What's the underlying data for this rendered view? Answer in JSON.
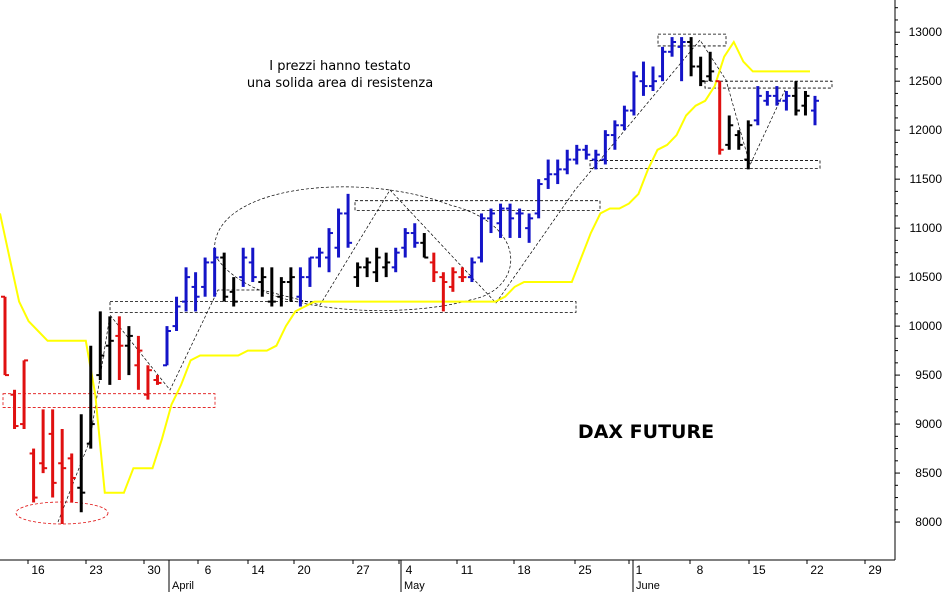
{
  "chart_data": {
    "type": "ohlc",
    "title": "DAX FUTURE",
    "annotation": [
      "I prezzi hanno testato",
      "una solida area di resistenza"
    ],
    "y_ticks": [
      8000,
      8500,
      9000,
      9500,
      10000,
      10500,
      11000,
      11500,
      12000,
      12500,
      13000
    ],
    "ylim": [
      7600,
      13200
    ],
    "x_day_labels": [
      "16",
      "23",
      "30",
      "6",
      "14",
      "20",
      "27",
      "4",
      "11",
      "18",
      "25",
      "1",
      "8",
      "15",
      "22",
      "29"
    ],
    "x_month_labels": [
      "April",
      "May",
      "June"
    ],
    "bar_colors": {
      "up": "#1414c8",
      "down": "#e01010",
      "neutral": "#000000"
    },
    "overlay_line": {
      "color": "#ffff00"
    },
    "resistance_zones": [
      {
        "low": 9170,
        "high": 9310
      },
      {
        "low": 10140,
        "high": 10250
      },
      {
        "low": 11180,
        "high": 11280
      },
      {
        "low": 11610,
        "high": 11690
      },
      {
        "low": 12430,
        "high": 12500
      },
      {
        "low": 12860,
        "high": 12980
      }
    ],
    "bars": [
      {
        "o": 10300,
        "h": 10300,
        "l": 9500,
        "c": 9500,
        "k": "down"
      },
      {
        "o": 9300,
        "h": 9350,
        "l": 8950,
        "c": 8980,
        "k": "down"
      },
      {
        "o": 9000,
        "h": 9650,
        "l": 8950,
        "c": 9650,
        "k": "down"
      },
      {
        "o": 8700,
        "h": 8750,
        "l": 8200,
        "c": 8250,
        "k": "down"
      },
      {
        "o": 8600,
        "h": 9150,
        "l": 8500,
        "c": 8550,
        "k": "down"
      },
      {
        "o": 8900,
        "h": 9150,
        "l": 8250,
        "c": 8400,
        "k": "down"
      },
      {
        "o": 8600,
        "h": 8950,
        "l": 7980,
        "c": 8550,
        "k": "down"
      },
      {
        "o": 8650,
        "h": 8700,
        "l": 8200,
        "c": 8450,
        "k": "down"
      },
      {
        "o": 8350,
        "h": 9100,
        "l": 8100,
        "c": 8300,
        "k": "neutral"
      },
      {
        "o": 8800,
        "h": 9800,
        "l": 8750,
        "c": 9000,
        "k": "neutral"
      },
      {
        "o": 9500,
        "h": 10150,
        "l": 9450,
        "c": 9700,
        "k": "neutral"
      },
      {
        "o": 9800,
        "h": 10100,
        "l": 9400,
        "c": 9850,
        "k": "neutral"
      },
      {
        "o": 9900,
        "h": 10100,
        "l": 9450,
        "c": 9800,
        "k": "down"
      },
      {
        "o": 9800,
        "h": 10000,
        "l": 9500,
        "c": 9900,
        "k": "neutral"
      },
      {
        "o": 9600,
        "h": 9900,
        "l": 9350,
        "c": 9750,
        "k": "down"
      },
      {
        "o": 9300,
        "h": 9600,
        "l": 9250,
        "c": 9550,
        "k": "down"
      },
      {
        "o": 9450,
        "h": 9500,
        "l": 9400,
        "c": 9420,
        "k": "down"
      },
      {
        "o": 9600,
        "h": 10000,
        "l": 9600,
        "c": 9950,
        "k": "up"
      },
      {
        "o": 10000,
        "h": 10300,
        "l": 9950,
        "c": 10200,
        "k": "up"
      },
      {
        "o": 10250,
        "h": 10600,
        "l": 10150,
        "c": 10500,
        "k": "up"
      },
      {
        "o": 10400,
        "h": 10550,
        "l": 10150,
        "c": 10300,
        "k": "up"
      },
      {
        "o": 10400,
        "h": 10700,
        "l": 10300,
        "c": 10650,
        "k": "up"
      },
      {
        "o": 10650,
        "h": 10800,
        "l": 10300,
        "c": 10700,
        "k": "up"
      },
      {
        "o": 10700,
        "h": 10750,
        "l": 10250,
        "c": 10300,
        "k": "neutral"
      },
      {
        "o": 10350,
        "h": 10500,
        "l": 10200,
        "c": 10250,
        "k": "neutral"
      },
      {
        "o": 10500,
        "h": 10800,
        "l": 10400,
        "c": 10700,
        "k": "up"
      },
      {
        "o": 10650,
        "h": 10800,
        "l": 10450,
        "c": 10500,
        "k": "up"
      },
      {
        "o": 10450,
        "h": 10600,
        "l": 10300,
        "c": 10500,
        "k": "neutral"
      },
      {
        "o": 10250,
        "h": 10600,
        "l": 10200,
        "c": 10250,
        "k": "neutral"
      },
      {
        "o": 10300,
        "h": 10500,
        "l": 10200,
        "c": 10450,
        "k": "neutral"
      },
      {
        "o": 10450,
        "h": 10600,
        "l": 10250,
        "c": 10500,
        "k": "neutral"
      },
      {
        "o": 10300,
        "h": 10600,
        "l": 10200,
        "c": 10500,
        "k": "up"
      },
      {
        "o": 10500,
        "h": 10700,
        "l": 10400,
        "c": 10700,
        "k": "up"
      },
      {
        "o": 10700,
        "h": 10800,
        "l": 10600,
        "c": 10750,
        "k": "up"
      },
      {
        "o": 10700,
        "h": 11000,
        "l": 10550,
        "c": 10950,
        "k": "up"
      },
      {
        "o": 10800,
        "h": 11200,
        "l": 10700,
        "c": 11150,
        "k": "up"
      },
      {
        "o": 11150,
        "h": 11350,
        "l": 10800,
        "c": 10850,
        "k": "up"
      },
      {
        "o": 10500,
        "h": 10650,
        "l": 10400,
        "c": 10600,
        "k": "neutral"
      },
      {
        "o": 10600,
        "h": 10700,
        "l": 10500,
        "c": 10650,
        "k": "neutral"
      },
      {
        "o": 10550,
        "h": 10800,
        "l": 10450,
        "c": 10700,
        "k": "neutral"
      },
      {
        "o": 10600,
        "h": 10750,
        "l": 10500,
        "c": 10650,
        "k": "neutral"
      },
      {
        "o": 10600,
        "h": 10800,
        "l": 10550,
        "c": 10750,
        "k": "up"
      },
      {
        "o": 10800,
        "h": 11000,
        "l": 10700,
        "c": 10950,
        "k": "up"
      },
      {
        "o": 10950,
        "h": 11050,
        "l": 10800,
        "c": 10850,
        "k": "up"
      },
      {
        "o": 10850,
        "h": 10950,
        "l": 10700,
        "c": 10700,
        "k": "neutral"
      },
      {
        "o": 10650,
        "h": 10750,
        "l": 10450,
        "c": 10550,
        "k": "down"
      },
      {
        "o": 10500,
        "h": 10550,
        "l": 10150,
        "c": 10450,
        "k": "down"
      },
      {
        "o": 10400,
        "h": 10600,
        "l": 10350,
        "c": 10550,
        "k": "down"
      },
      {
        "o": 10500,
        "h": 10600,
        "l": 10450,
        "c": 10500,
        "k": "down"
      },
      {
        "o": 10500,
        "h": 10700,
        "l": 10450,
        "c": 10650,
        "k": "up"
      },
      {
        "o": 10700,
        "h": 11150,
        "l": 10650,
        "c": 11100,
        "k": "up"
      },
      {
        "o": 11100,
        "h": 11200,
        "l": 10950,
        "c": 11150,
        "k": "up"
      },
      {
        "o": 11050,
        "h": 11250,
        "l": 10900,
        "c": 11200,
        "k": "up"
      },
      {
        "o": 11200,
        "h": 11250,
        "l": 10900,
        "c": 11100,
        "k": "up"
      },
      {
        "o": 11150,
        "h": 11200,
        "l": 10900,
        "c": 11150,
        "k": "up"
      },
      {
        "o": 11000,
        "h": 11150,
        "l": 10850,
        "c": 11100,
        "k": "up"
      },
      {
        "o": 11150,
        "h": 11500,
        "l": 11100,
        "c": 11450,
        "k": "up"
      },
      {
        "o": 11500,
        "h": 11700,
        "l": 11400,
        "c": 11550,
        "k": "up"
      },
      {
        "o": 11550,
        "h": 11700,
        "l": 11450,
        "c": 11600,
        "k": "up"
      },
      {
        "o": 11600,
        "h": 11800,
        "l": 11550,
        "c": 11700,
        "k": "up"
      },
      {
        "o": 11700,
        "h": 11850,
        "l": 11650,
        "c": 11800,
        "k": "up"
      },
      {
        "o": 11800,
        "h": 11850,
        "l": 11700,
        "c": 11750,
        "k": "up"
      },
      {
        "o": 11700,
        "h": 11800,
        "l": 11600,
        "c": 11750,
        "k": "up"
      },
      {
        "o": 11700,
        "h": 12000,
        "l": 11650,
        "c": 11950,
        "k": "up"
      },
      {
        "o": 11950,
        "h": 12100,
        "l": 11800,
        "c": 12050,
        "k": "up"
      },
      {
        "o": 12050,
        "h": 12250,
        "l": 12000,
        "c": 12200,
        "k": "up"
      },
      {
        "o": 12200,
        "h": 12600,
        "l": 12150,
        "c": 12550,
        "k": "up"
      },
      {
        "o": 12500,
        "h": 12700,
        "l": 12350,
        "c": 12450,
        "k": "up"
      },
      {
        "o": 12450,
        "h": 12650,
        "l": 12400,
        "c": 12500,
        "k": "up"
      },
      {
        "o": 12550,
        "h": 12850,
        "l": 12500,
        "c": 12800,
        "k": "up"
      },
      {
        "o": 12800,
        "h": 12950,
        "l": 12750,
        "c": 12900,
        "k": "up"
      },
      {
        "o": 12850,
        "h": 12950,
        "l": 12500,
        "c": 12900,
        "k": "up"
      },
      {
        "o": 12900,
        "h": 12950,
        "l": 12550,
        "c": 12650,
        "k": "neutral"
      },
      {
        "o": 12650,
        "h": 12750,
        "l": 12450,
        "c": 12500,
        "k": "neutral"
      },
      {
        "o": 12550,
        "h": 12800,
        "l": 12500,
        "c": 12600,
        "k": "neutral"
      },
      {
        "o": 12500,
        "h": 12500,
        "l": 11750,
        "c": 11800,
        "k": "down"
      },
      {
        "o": 11850,
        "h": 12150,
        "l": 11800,
        "c": 12050,
        "k": "neutral"
      },
      {
        "o": 11950,
        "h": 12000,
        "l": 11800,
        "c": 11850,
        "k": "neutral"
      },
      {
        "o": 11700,
        "h": 12100,
        "l": 11600,
        "c": 12050,
        "k": "neutral"
      },
      {
        "o": 12100,
        "h": 12450,
        "l": 12050,
        "c": 12350,
        "k": "up"
      },
      {
        "o": 12300,
        "h": 12400,
        "l": 12250,
        "c": 12350,
        "k": "up"
      },
      {
        "o": 12350,
        "h": 12450,
        "l": 12250,
        "c": 12300,
        "k": "up"
      },
      {
        "o": 12300,
        "h": 12400,
        "l": 12200,
        "c": 12350,
        "k": "up"
      },
      {
        "o": 12350,
        "h": 12500,
        "l": 12150,
        "c": 12200,
        "k": "neutral"
      },
      {
        "o": 12250,
        "h": 12400,
        "l": 12150,
        "c": 12350,
        "k": "neutral"
      },
      {
        "o": 12200,
        "h": 12350,
        "l": 12050,
        "c": 12300,
        "k": "up"
      }
    ],
    "overlay_values": [
      11150,
      10700,
      10250,
      10050,
      9950,
      9850,
      9850,
      9850,
      9850,
      9850,
      9300,
      8300,
      8300,
      8300,
      8550,
      8550,
      8550,
      8850,
      9200,
      9400,
      9650,
      9700,
      9700,
      9700,
      9700,
      9700,
      9750,
      9750,
      9750,
      9800,
      10000,
      10150,
      10200,
      10250,
      10250,
      10250,
      10250,
      10250,
      10250,
      10250,
      10250,
      10250,
      10250,
      10250,
      10250,
      10250,
      10250,
      10250,
      10250,
      10250,
      10250,
      10250,
      10250,
      10300,
      10400,
      10450,
      10450,
      10450,
      10450,
      10450,
      10450,
      10700,
      10950,
      11150,
      11200,
      11200,
      11250,
      11350,
      11600,
      11800,
      11850,
      11950,
      12150,
      12250,
      12300,
      12450,
      12750,
      12900,
      12700,
      12600,
      12600,
      12600,
      12600,
      12600,
      12600,
      12600
    ]
  }
}
